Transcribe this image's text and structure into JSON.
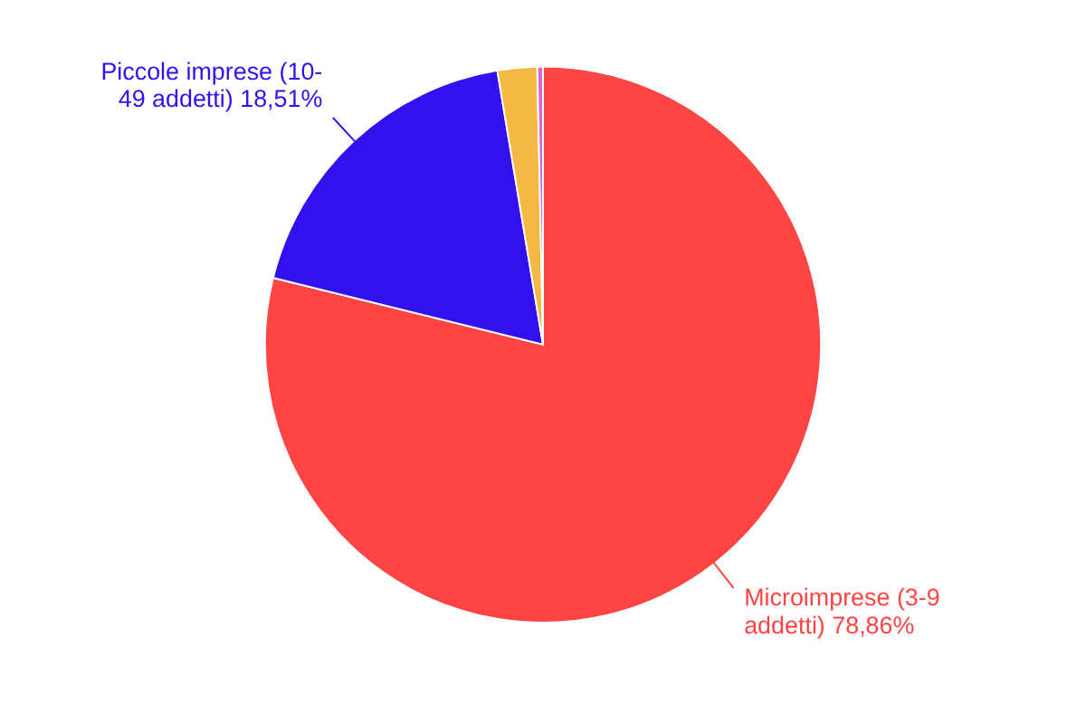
{
  "chart_data": {
    "type": "pie",
    "categories": [
      "Microimprese (3-9 addetti)",
      "Piccole imprese (10-49 addetti)",
      null,
      null
    ],
    "values": [
      78.86,
      18.51,
      2.3,
      0.33
    ],
    "value_labels": [
      "78,86%",
      "18,51%",
      null,
      null
    ],
    "colors": [
      "#ff4444",
      "#3311ee",
      "#f4b942",
      "#d966cc"
    ]
  }
}
